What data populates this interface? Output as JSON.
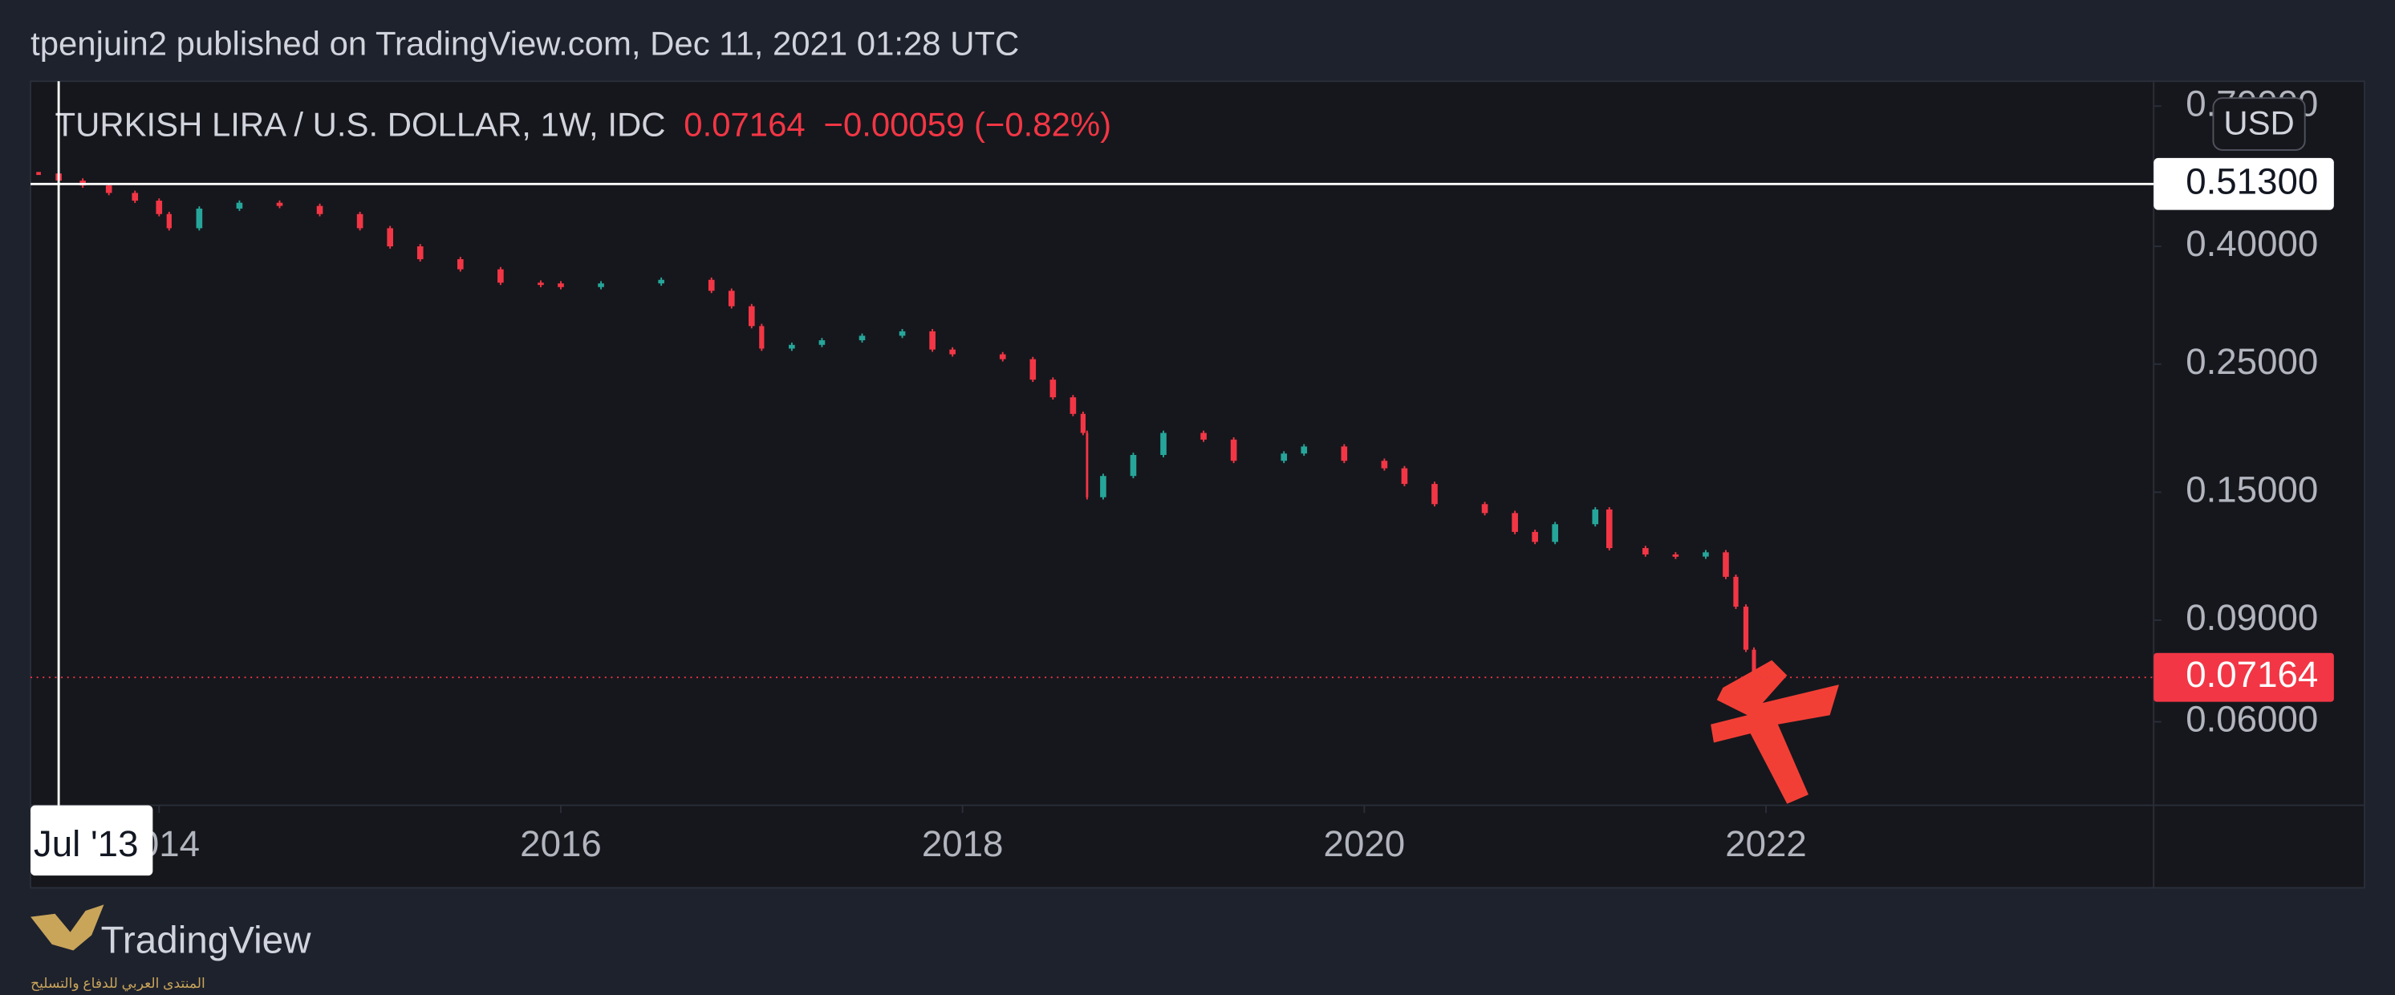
{
  "header": {
    "text": "tpenjuin2 published on TradingView.com, Dec 11, 2021 01:28 UTC"
  },
  "chart_data": {
    "type": "candlestick",
    "title": "TURKISH LIRA / U.S. DOLLAR, 1W, IDC",
    "change": "−0.00059 (−0.82%)",
    "currency": "USD",
    "log_scale": true,
    "grid": false,
    "up_color": "#26a69a",
    "down_color": "#f23645",
    "x": [
      2013.4,
      2013.5,
      2013.62,
      2013.75,
      2013.88,
      2014.0,
      2014.05,
      2014.2,
      2014.4,
      2014.6,
      2014.8,
      2015.0,
      2015.15,
      2015.3,
      2015.5,
      2015.7,
      2015.9,
      2016.0,
      2016.2,
      2016.5,
      2016.75,
      2016.85,
      2016.95,
      2017.0,
      2017.15,
      2017.3,
      2017.5,
      2017.7,
      2017.85,
      2017.95,
      2018.2,
      2018.35,
      2018.45,
      2018.55,
      2018.6,
      2018.62,
      2018.7,
      2018.85,
      2019.0,
      2019.2,
      2019.35,
      2019.6,
      2019.7,
      2019.9,
      2020.1,
      2020.2,
      2020.35,
      2020.6,
      2020.75,
      2020.85,
      2020.95,
      2021.15,
      2021.22,
      2021.4,
      2021.55,
      2021.7,
      2021.8,
      2021.85,
      2021.9,
      2021.94
    ],
    "values": [
      0.535,
      0.52,
      0.51,
      0.495,
      0.48,
      0.455,
      0.43,
      0.465,
      0.476,
      0.47,
      0.455,
      0.43,
      0.4,
      0.38,
      0.365,
      0.346,
      0.345,
      0.34,
      0.345,
      0.35,
      0.335,
      0.315,
      0.291,
      0.266,
      0.27,
      0.275,
      0.28,
      0.285,
      0.265,
      0.26,
      0.255,
      0.235,
      0.219,
      0.205,
      0.19,
      0.147,
      0.16,
      0.174,
      0.19,
      0.185,
      0.17,
      0.175,
      0.18,
      0.17,
      0.165,
      0.155,
      0.143,
      0.138,
      0.128,
      0.123,
      0.132,
      0.14,
      0.12,
      0.117,
      0.116,
      0.118,
      0.107,
      0.095,
      0.08,
      0.0716
    ],
    "xlim": [
      2013.36,
      2023.93
    ],
    "xticks": [
      2014,
      2016,
      2018,
      2020,
      2022
    ],
    "ylim": [
      0.043,
      0.773
    ],
    "yticks": [
      {
        "value": 0.7,
        "label": "0.70000"
      },
      {
        "value": 0.4,
        "label": "0.40000"
      },
      {
        "value": 0.25,
        "label": "0.25000"
      },
      {
        "value": 0.15,
        "label": "0.15000"
      },
      {
        "value": 0.09,
        "label": "0.09000"
      },
      {
        "value": 0.06,
        "label": "0.06000"
      }
    ],
    "price_line": {
      "value": 0.07164,
      "label": "0.07164",
      "color": "#f23645"
    },
    "crosshair": {
      "y": {
        "value": 0.513,
        "label": "0.51300"
      },
      "x": {
        "value": 2013.5,
        "label": "Jul '13"
      }
    }
  },
  "footer": {
    "logo": "TradingView",
    "watermark": "المنتدى العربي للدفاع والتسليح"
  }
}
